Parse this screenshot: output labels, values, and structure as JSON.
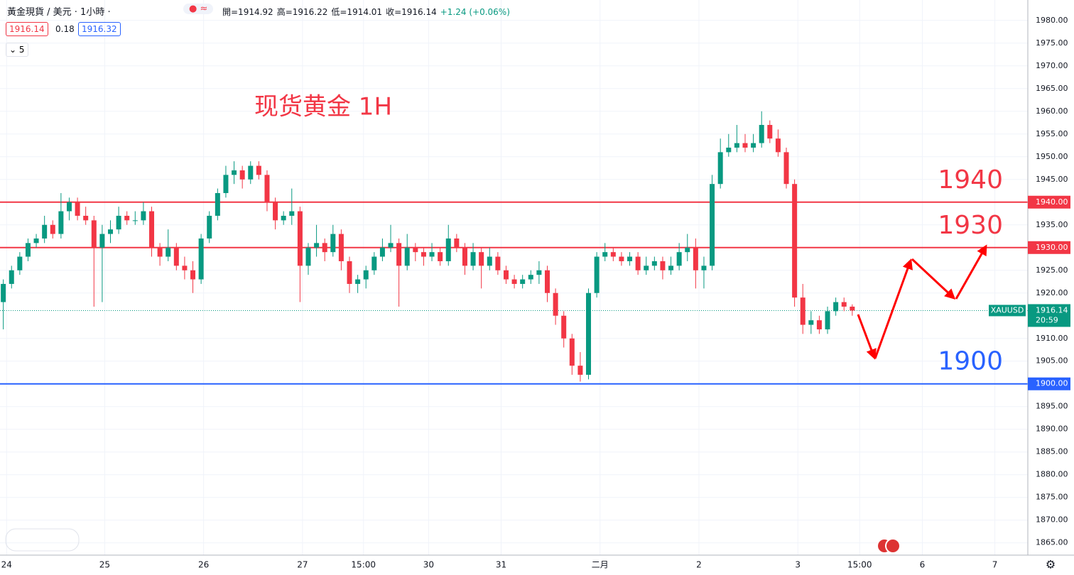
{
  "chart_data": {
    "type": "candlestick",
    "symbol_title": "黃金現貨 / 美元 · 1小時 ·",
    "ohlc_legend": [
      "開=1914.92",
      "高=1916.22",
      "低=1914.01",
      "收=1916.14",
      "+1.24 (+0.06%)"
    ],
    "bid": "1916.14",
    "spread": "0.18",
    "ask": "1916.32",
    "interval_box": "5",
    "annotation": "现货黄金 1H",
    "up_color": "#089981",
    "down_color": "#f23645",
    "ylim": [
      1862.3,
      1984.5
    ],
    "xlim": [
      -0.4,
      124.3
    ],
    "yticks": [
      {
        "value": 1980,
        "label": "1980.00"
      },
      {
        "value": 1975,
        "label": "1975.00"
      },
      {
        "value": 1970,
        "label": "1970.00"
      },
      {
        "value": 1965,
        "label": "1965.00"
      },
      {
        "value": 1960,
        "label": "1960.00"
      },
      {
        "value": 1955,
        "label": "1955.00"
      },
      {
        "value": 1950,
        "label": "1950.00"
      },
      {
        "value": 1945,
        "label": "1945.00"
      },
      {
        "value": 1935,
        "label": "1935.00"
      },
      {
        "value": 1925,
        "label": "1925.00"
      },
      {
        "value": 1920,
        "label": "1920.00"
      },
      {
        "value": 1910,
        "label": "1910.00"
      },
      {
        "value": 1905,
        "label": "1905.00"
      },
      {
        "value": 1895,
        "label": "1895.00"
      },
      {
        "value": 1890,
        "label": "1890.00"
      },
      {
        "value": 1885,
        "label": "1885.00"
      },
      {
        "value": 1880,
        "label": "1880.00"
      },
      {
        "value": 1875,
        "label": "1875.00"
      },
      {
        "value": 1870,
        "label": "1870.00"
      },
      {
        "value": 1865,
        "label": "1865.00"
      }
    ],
    "xticks": [
      {
        "value": 0.4,
        "label": "24"
      },
      {
        "value": 12.3,
        "label": "25"
      },
      {
        "value": 24.3,
        "label": "26"
      },
      {
        "value": 36.3,
        "label": "27"
      },
      {
        "value": 43.7,
        "label": "15:00"
      },
      {
        "value": 51.6,
        "label": "30"
      },
      {
        "value": 60.4,
        "label": "31"
      },
      {
        "value": 72.4,
        "label": "二月"
      },
      {
        "value": 84.4,
        "label": "2"
      },
      {
        "value": 96.4,
        "label": "3"
      },
      {
        "value": 103.9,
        "label": "15:00"
      },
      {
        "value": 111.5,
        "label": "6"
      },
      {
        "value": 120.3,
        "label": "7"
      }
    ],
    "grid": true,
    "levels": [
      {
        "value": 1940,
        "label": "1940",
        "tag": "1940.00",
        "color": "#f23645"
      },
      {
        "value": 1930,
        "label": "1930",
        "tag": "1930.00",
        "color": "#f23645"
      },
      {
        "value": 1900,
        "label": "1900",
        "tag": "1900.00",
        "color": "#2962ff"
      }
    ],
    "last_price": {
      "value": 1916.14,
      "label": "1916.14",
      "symbol": "XAUUSD",
      "countdown": "20:59"
    },
    "ohlc": [
      [
        1918,
        1923,
        1912,
        1922
      ],
      [
        1922,
        1926,
        1921,
        1925
      ],
      [
        1925,
        1929,
        1924,
        1928
      ],
      [
        1928,
        1932,
        1927,
        1931
      ],
      [
        1931,
        1933,
        1930,
        1932
      ],
      [
        1932,
        1937,
        1931,
        1935
      ],
      [
        1935,
        1936,
        1932,
        1933
      ],
      [
        1933,
        1942,
        1932,
        1938
      ],
      [
        1938,
        1941,
        1936,
        1940
      ],
      [
        1940,
        1941,
        1936,
        1937
      ],
      [
        1937,
        1939,
        1935,
        1936
      ],
      [
        1936,
        1937,
        1917,
        1930
      ],
      [
        1930,
        1935,
        1918,
        1933
      ],
      [
        1933,
        1936,
        1931,
        1934
      ],
      [
        1934,
        1939,
        1933,
        1937
      ],
      [
        1937,
        1938,
        1935,
        1936
      ],
      [
        1936,
        1938,
        1935,
        1936
      ],
      [
        1936,
        1940,
        1935,
        1938
      ],
      [
        1938,
        1939,
        1928,
        1930
      ],
      [
        1930,
        1931,
        1926,
        1928
      ],
      [
        1928,
        1934,
        1927,
        1930
      ],
      [
        1930,
        1931,
        1925,
        1926
      ],
      [
        1926,
        1928,
        1923,
        1925
      ],
      [
        1925,
        1927,
        1920,
        1923
      ],
      [
        1923,
        1933,
        1922,
        1932
      ],
      [
        1932,
        1938,
        1931,
        1937
      ],
      [
        1937,
        1943,
        1936,
        1942
      ],
      [
        1942,
        1948,
        1941,
        1946
      ],
      [
        1946,
        1949,
        1944,
        1947
      ],
      [
        1947,
        1948,
        1943,
        1945
      ],
      [
        1945,
        1949,
        1944,
        1948
      ],
      [
        1948,
        1949,
        1945,
        1946
      ],
      [
        1946,
        1947,
        1938,
        1940
      ],
      [
        1940,
        1941,
        1934,
        1936
      ],
      [
        1936,
        1938,
        1935,
        1937
      ],
      [
        1937,
        1943,
        1935,
        1938
      ],
      [
        1938,
        1939,
        1918,
        1926
      ],
      [
        1926,
        1931,
        1924,
        1930
      ],
      [
        1930,
        1935,
        1928,
        1931
      ],
      [
        1931,
        1932,
        1927,
        1929
      ],
      [
        1929,
        1935,
        1928,
        1933
      ],
      [
        1933,
        1934,
        1925,
        1927
      ],
      [
        1927,
        1928,
        1920,
        1922
      ],
      [
        1922,
        1924,
        1920,
        1923
      ],
      [
        1923,
        1926,
        1921,
        1925
      ],
      [
        1925,
        1929,
        1924,
        1928
      ],
      [
        1928,
        1932,
        1927,
        1930
      ],
      [
        1930,
        1935,
        1929,
        1931
      ],
      [
        1931,
        1932,
        1917,
        1926
      ],
      [
        1926,
        1933,
        1925,
        1930
      ],
      [
        1930,
        1931,
        1927,
        1929
      ],
      [
        1929,
        1930,
        1926,
        1928
      ],
      [
        1928,
        1931,
        1927,
        1929
      ],
      [
        1929,
        1930,
        1926,
        1927
      ],
      [
        1927,
        1935,
        1926,
        1932
      ],
      [
        1932,
        1933,
        1929,
        1930
      ],
      [
        1930,
        1931,
        1924,
        1926
      ],
      [
        1926,
        1931,
        1925,
        1929
      ],
      [
        1929,
        1930,
        1921,
        1926
      ],
      [
        1926,
        1930,
        1925,
        1928
      ],
      [
        1928,
        1929,
        1924,
        1925
      ],
      [
        1925,
        1926,
        1922,
        1923
      ],
      [
        1923,
        1924,
        1921,
        1922
      ],
      [
        1922,
        1924,
        1921,
        1923
      ],
      [
        1923,
        1925,
        1922,
        1924
      ],
      [
        1924,
        1927,
        1922,
        1925
      ],
      [
        1925,
        1926,
        1918,
        1920
      ],
      [
        1920,
        1921,
        1913,
        1915
      ],
      [
        1915,
        1916,
        1908,
        1910
      ],
      [
        1910,
        1911,
        1902,
        1904
      ],
      [
        1904,
        1907,
        1900.5,
        1902
      ],
      [
        1902,
        1921,
        1901,
        1920
      ],
      [
        1920,
        1929,
        1919,
        1928
      ],
      [
        1928,
        1931,
        1927,
        1929
      ],
      [
        1929,
        1930,
        1927,
        1928
      ],
      [
        1928,
        1929,
        1926,
        1927
      ],
      [
        1927,
        1929,
        1926,
        1928
      ],
      [
        1928,
        1929,
        1924,
        1925
      ],
      [
        1925,
        1928,
        1924,
        1926
      ],
      [
        1926,
        1928,
        1925,
        1927
      ],
      [
        1927,
        1928,
        1923,
        1925
      ],
      [
        1925,
        1928,
        1924,
        1926
      ],
      [
        1926,
        1931,
        1925,
        1929
      ],
      [
        1929,
        1933,
        1927,
        1930
      ],
      [
        1930,
        1932,
        1921,
        1925
      ],
      [
        1925,
        1928,
        1921,
        1926
      ],
      [
        1926,
        1946,
        1925,
        1944
      ],
      [
        1944,
        1954,
        1943,
        1951
      ],
      [
        1951,
        1955,
        1950,
        1952
      ],
      [
        1952,
        1957,
        1951,
        1953
      ],
      [
        1953,
        1955,
        1951,
        1952
      ],
      [
        1952,
        1955,
        1951,
        1953
      ],
      [
        1953,
        1960,
        1952,
        1957
      ],
      [
        1957,
        1958,
        1953,
        1954
      ],
      [
        1954,
        1956,
        1950,
        1951
      ],
      [
        1951,
        1952,
        1943,
        1944
      ],
      [
        1944,
        1945,
        1917,
        1919
      ],
      [
        1919,
        1922,
        1911,
        1913
      ],
      [
        1913,
        1916,
        1911,
        1914
      ],
      [
        1914,
        1915,
        1911,
        1912
      ],
      [
        1912,
        1917,
        1911,
        1916
      ],
      [
        1916,
        1919,
        1915,
        1918
      ],
      [
        1918,
        1919,
        1916,
        1917
      ],
      [
        1917,
        1917.5,
        1915,
        1916.14
      ]
    ]
  }
}
